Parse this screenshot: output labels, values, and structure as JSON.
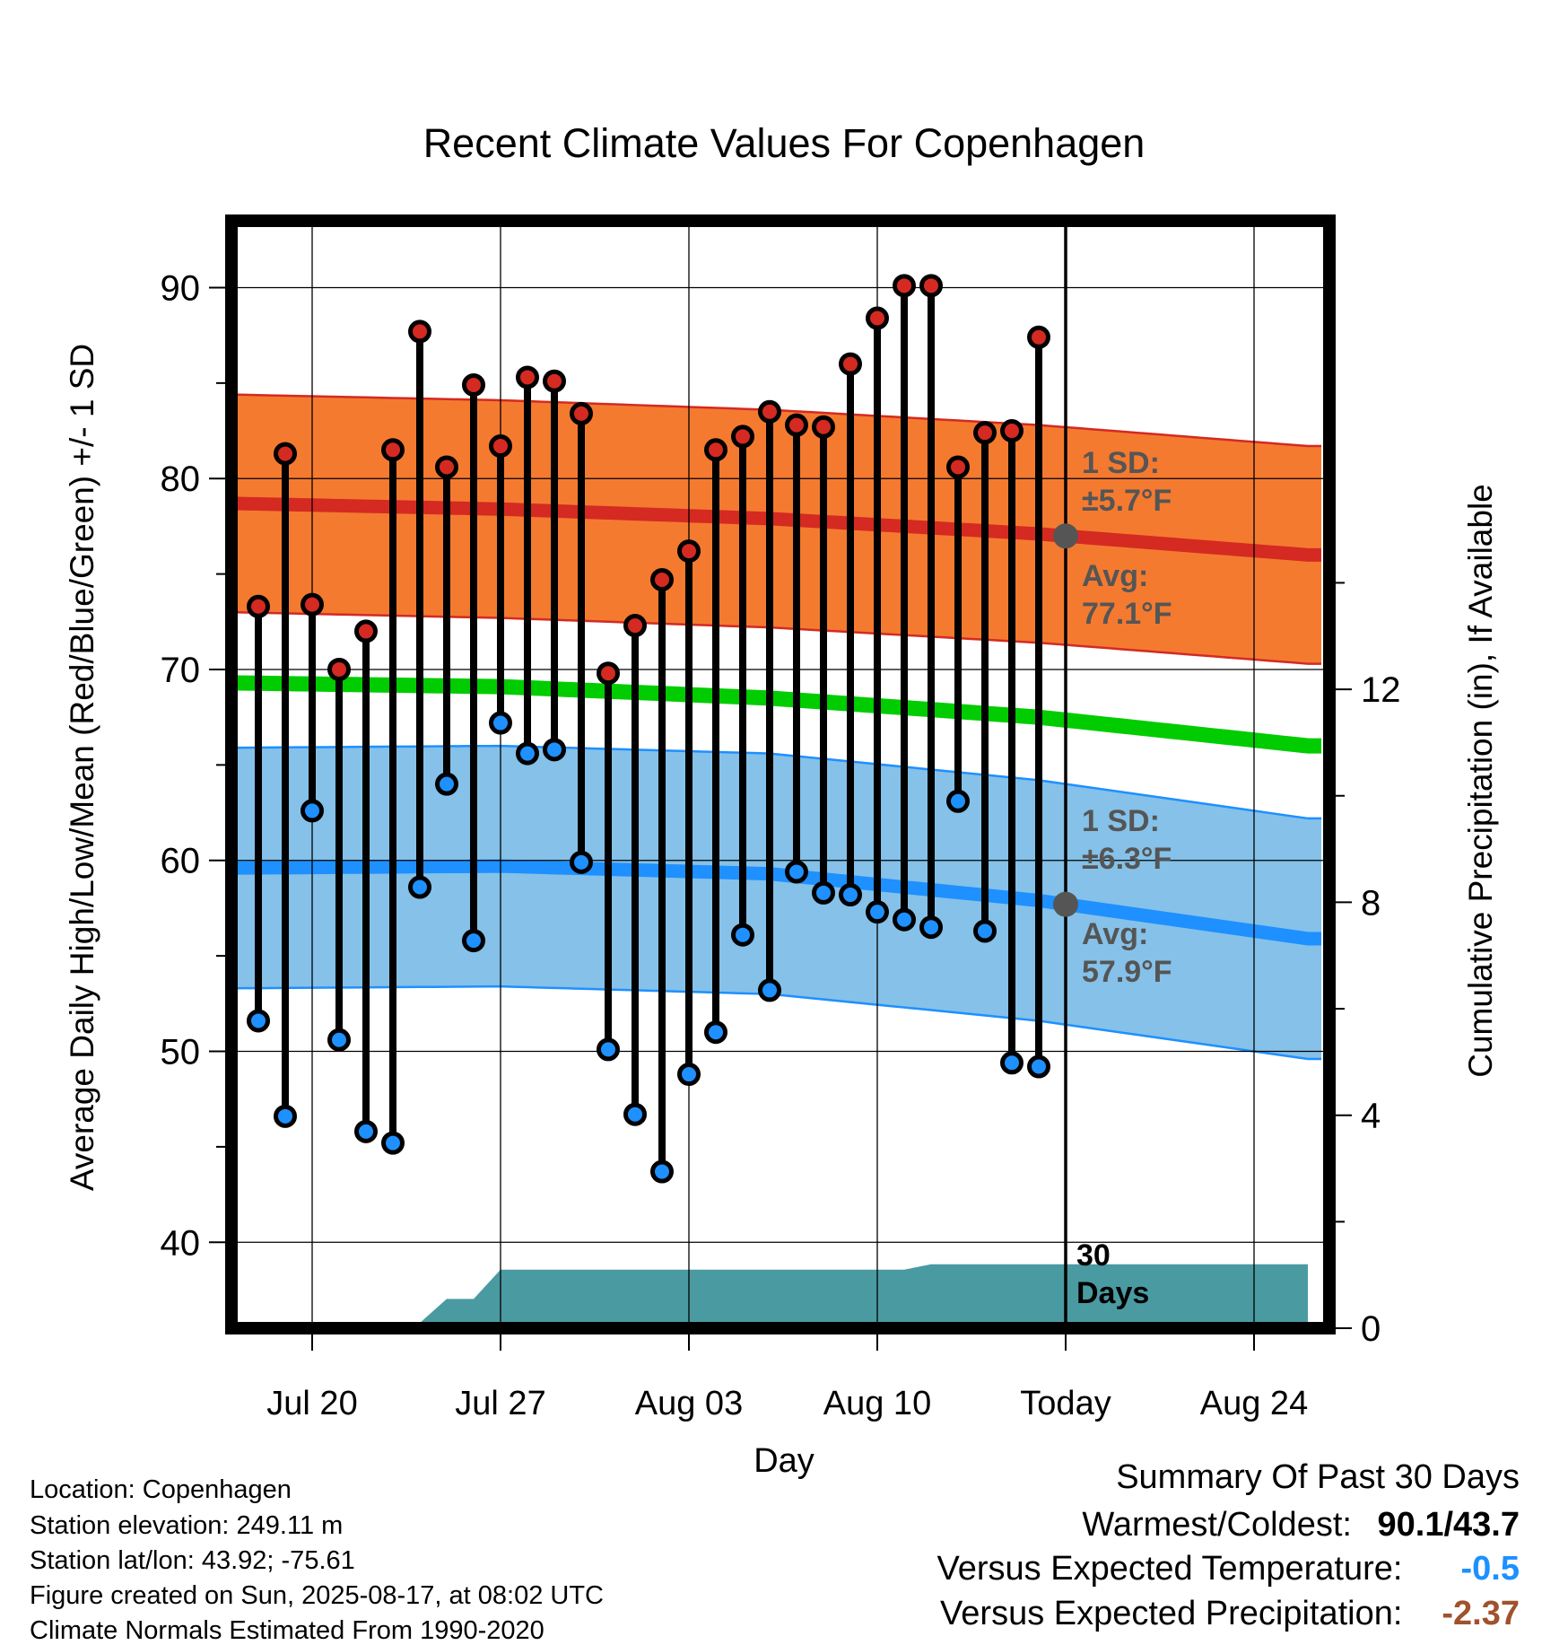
{
  "chart_data": {
    "type": "line",
    "title": "Recent Climate Values For Copenhagen",
    "xlabel": "Day",
    "ylabel": "Average Daily High/Low/Mean (Red/Blue/Green) +/- 1 SD",
    "ylabel_right": "Cumulative Precipitation (in), If Available",
    "x_ticks": [
      {
        "day": 3,
        "label": "Jul 20"
      },
      {
        "day": 10,
        "label": "Jul 27"
      },
      {
        "day": 17,
        "label": "Aug 03"
      },
      {
        "day": 24,
        "label": "Aug 10"
      },
      {
        "day": 31,
        "label": "Today"
      },
      {
        "day": 38,
        "label": "Aug 24"
      }
    ],
    "x_range": [
      0,
      40
    ],
    "ylim": [
      35.5,
      93.5
    ],
    "y_ticks": [
      40,
      50,
      60,
      70,
      80,
      90
    ],
    "y2lim": [
      0,
      20.8
    ],
    "y2_ticks": [
      0,
      4,
      8,
      12
    ],
    "today_day": 31,
    "days": [
      1,
      2,
      3,
      4,
      5,
      6,
      7,
      8,
      9,
      10,
      11,
      12,
      13,
      14,
      15,
      16,
      17,
      18,
      19,
      20,
      21,
      22,
      23,
      24,
      25,
      26,
      27,
      28,
      29,
      30
    ],
    "highs": [
      73.3,
      81.3,
      73.4,
      70.0,
      72.0,
      81.5,
      87.7,
      80.6,
      84.9,
      81.7,
      85.3,
      85.1,
      83.4,
      69.8,
      72.3,
      74.7,
      76.2,
      81.5,
      82.2,
      83.5,
      82.8,
      82.7,
      86.0,
      88.4,
      90.1,
      90.1,
      80.6,
      82.4,
      82.5,
      87.4
    ],
    "lows": [
      51.6,
      46.6,
      62.6,
      50.6,
      45.8,
      45.2,
      58.6,
      64.0,
      55.8,
      67.2,
      65.6,
      65.8,
      59.9,
      50.1,
      46.7,
      43.7,
      48.8,
      51.0,
      56.1,
      53.2,
      59.4,
      58.3,
      58.2,
      57.3,
      56.9,
      56.5,
      63.1,
      56.3,
      49.4,
      49.2
    ],
    "normal_high": {
      "days": [
        0,
        10,
        20,
        30,
        40
      ],
      "values": [
        78.7,
        78.4,
        77.9,
        77.1,
        76.0
      ]
    },
    "normal_mean": {
      "days": [
        0,
        10,
        20,
        30,
        40
      ],
      "values": [
        69.3,
        69.1,
        68.5,
        67.5,
        66.0
      ]
    },
    "normal_low": {
      "days": [
        0,
        10,
        20,
        30,
        40
      ],
      "values": [
        59.6,
        59.7,
        59.3,
        57.9,
        55.9
      ]
    },
    "high_sd": 5.7,
    "low_sd": 6.3,
    "precip": {
      "days": [
        0,
        2,
        3,
        7,
        8,
        9,
        10,
        25,
        26,
        40
      ],
      "values": [
        0,
        0,
        0.1,
        0.1,
        0.55,
        0.55,
        1.1,
        1.1,
        1.2,
        1.2
      ]
    },
    "annotations": {
      "high_sd_label": "1 SD:",
      "high_sd_value": "±5.7°F",
      "high_avg_label": "Avg:",
      "high_avg_value": "77.1°F",
      "low_sd_label": "1 SD:",
      "low_sd_value": "±6.3°F",
      "low_avg_label": "Avg:",
      "low_avg_value": "57.9°F",
      "days_label_1": "30",
      "days_label_2": "Days"
    },
    "colors": {
      "high_band": "#f47a30",
      "high_line": "#d42a22",
      "mean_line": "#00cc00",
      "low_band": "#85c1e8",
      "low_line": "#1e90ff",
      "precip_fill": "#4a9aa2",
      "high_dot": "#d42a22",
      "low_dot": "#1e90ff",
      "annotation_text": "#555555",
      "today_marker": "#555555"
    }
  },
  "info": {
    "location": "Location: Copenhagen",
    "elevation": "Station elevation: 249.11 m",
    "latlon": "Station lat/lon: 43.92; -75.61",
    "created": "Figure created on Sun, 2025-08-17, at 08:02 UTC",
    "normals": "Climate Normals Estimated From 1990-2020"
  },
  "summary": {
    "title": "Summary Of Past 30 Days",
    "warmest_label": "Warmest/Coldest:",
    "warmest_value": "90.1/43.7",
    "temp_label": "Versus Expected Temperature:",
    "temp_value": "-0.5",
    "temp_color": "#1e90ff",
    "precip_label": "Versus Expected Precipitation:",
    "precip_value": "-2.37",
    "precip_color": "#a0522d"
  }
}
